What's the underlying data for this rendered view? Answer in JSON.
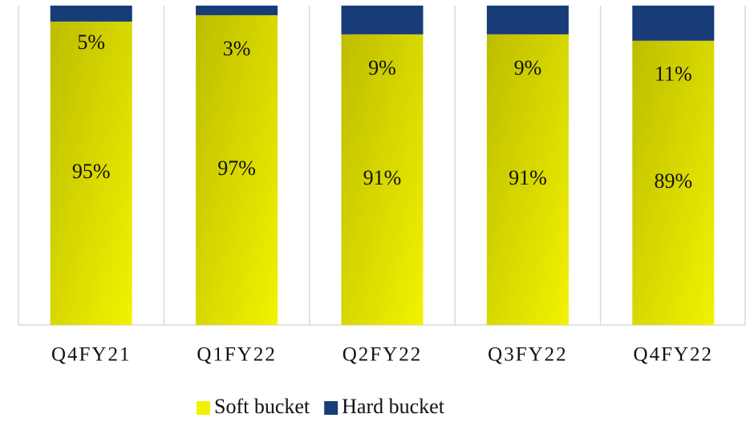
{
  "chart_data": {
    "type": "stacked_bar",
    "categories": [
      "Q4FY21",
      "Q1FY22",
      "Q2FY22",
      "Q3FY22",
      "Q4FY22"
    ],
    "series": [
      {
        "name": "Soft bucket",
        "color": "#f2f200",
        "values": [
          95,
          97,
          91,
          91,
          89
        ],
        "value_labels": [
          "95%",
          "97%",
          "91%",
          "91%",
          "89%"
        ]
      },
      {
        "name": "Hard bucket",
        "color": "#173c78",
        "values": [
          5,
          3,
          9,
          9,
          11
        ],
        "value_labels": [
          "5%",
          "3%",
          "9%",
          "9%",
          "11%"
        ]
      }
    ],
    "ylim": [
      0,
      100
    ],
    "legend": "bottom"
  }
}
